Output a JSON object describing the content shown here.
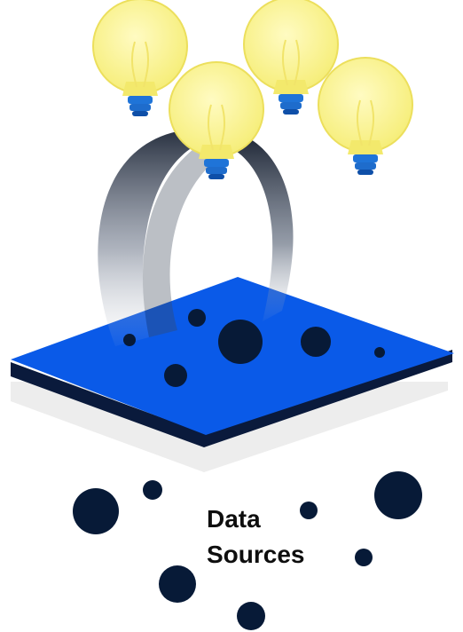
{
  "label": {
    "line1": "Data",
    "line2": "Sources"
  },
  "colors": {
    "bulb_glass": "#fbf38a",
    "bulb_glass_outline": "#e9dc55",
    "bulb_base": "#1f74d8",
    "bulb_base_dark": "#0e4fa8",
    "platform_top": "#0a5ae8",
    "platform_edge": "#0a1a3c",
    "platform_shadow": "#ececec",
    "dot": "#071a37",
    "text": "#0e0e0e",
    "arch": "#2a3548"
  }
}
